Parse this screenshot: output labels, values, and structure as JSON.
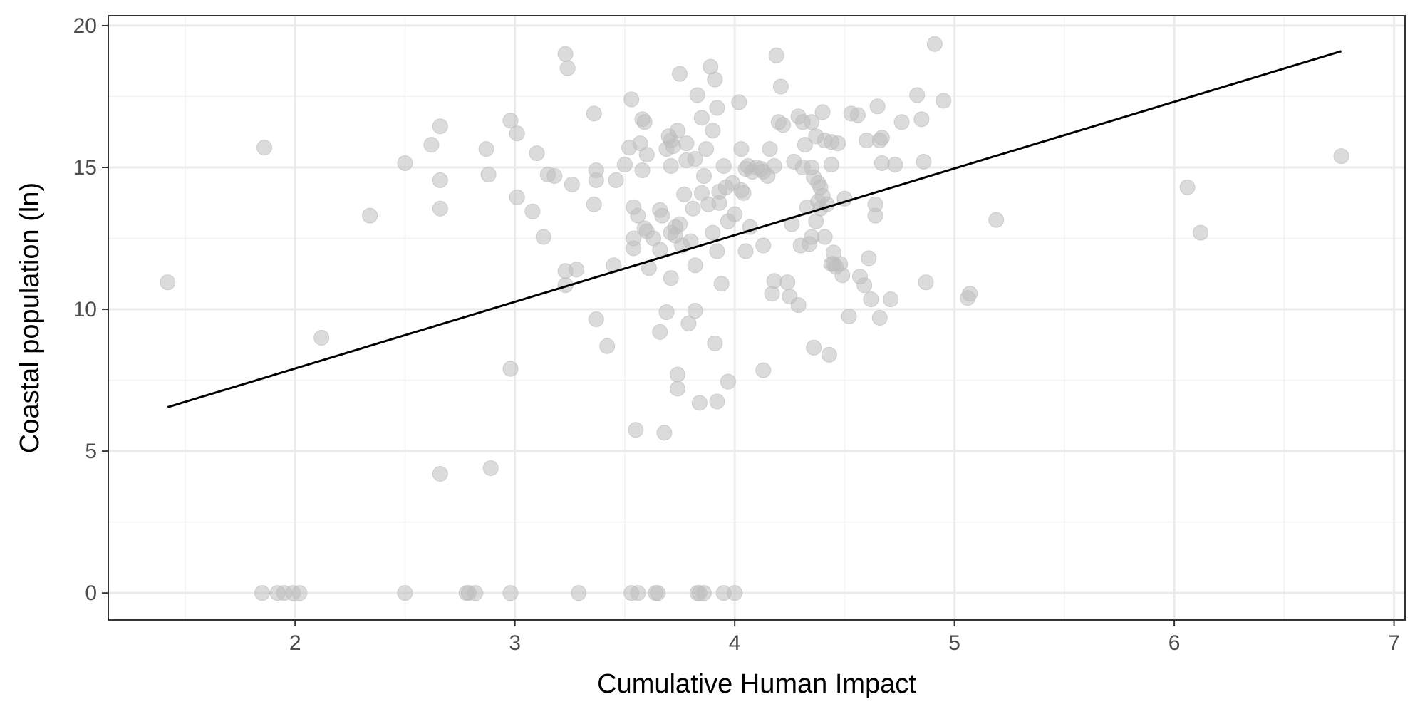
{
  "chart_data": {
    "type": "scatter",
    "xlabel": "Cumulative Human Impact",
    "ylabel": "Coastal population (ln)",
    "xlim": [
      1.15,
      7.05
    ],
    "ylim": [
      -0.95,
      20.35
    ],
    "x_ticks": [
      2,
      3,
      4,
      5,
      6,
      7
    ],
    "y_ticks": [
      0,
      5,
      10,
      15,
      20
    ],
    "x_ticks_minor": [
      1.5,
      2.5,
      3.5,
      4.5,
      5.5,
      6.5
    ],
    "y_ticks_minor": [
      2.5,
      7.5,
      12.5,
      17.5
    ],
    "grid": true,
    "legend": "none",
    "point_color": "#bebebe",
    "line_color": "#000000",
    "trend_line": {
      "x": [
        1.42,
        6.76
      ],
      "y": [
        6.55,
        19.1
      ]
    },
    "points": [
      [
        1.42,
        10.95
      ],
      [
        1.86,
        15.7
      ],
      [
        2.12,
        9.0
      ],
      [
        2.34,
        13.3
      ],
      [
        2.5,
        15.15
      ],
      [
        2.62,
        15.8
      ],
      [
        2.66,
        16.45
      ],
      [
        2.66,
        14.55
      ],
      [
        2.66,
        13.55
      ],
      [
        2.66,
        4.2
      ],
      [
        2.87,
        15.65
      ],
      [
        2.88,
        14.75
      ],
      [
        2.89,
        4.4
      ],
      [
        2.98,
        16.65
      ],
      [
        2.98,
        7.9
      ],
      [
        3.01,
        16.2
      ],
      [
        3.01,
        13.95
      ],
      [
        3.08,
        13.45
      ],
      [
        3.1,
        15.5
      ],
      [
        3.13,
        12.55
      ],
      [
        3.15,
        14.75
      ],
      [
        3.18,
        14.7
      ],
      [
        3.23,
        19.0
      ],
      [
        3.24,
        18.5
      ],
      [
        3.23,
        11.35
      ],
      [
        3.23,
        10.85
      ],
      [
        3.26,
        14.4
      ],
      [
        3.28,
        11.4
      ],
      [
        3.36,
        16.9
      ],
      [
        3.36,
        13.7
      ],
      [
        3.37,
        14.9
      ],
      [
        3.37,
        14.55
      ],
      [
        3.37,
        9.65
      ],
      [
        3.42,
        8.7
      ],
      [
        3.45,
        11.55
      ],
      [
        3.46,
        14.55
      ],
      [
        3.5,
        15.1
      ],
      [
        3.52,
        15.7
      ],
      [
        3.53,
        17.4
      ],
      [
        3.54,
        13.6
      ],
      [
        3.54,
        12.5
      ],
      [
        3.54,
        12.15
      ],
      [
        3.55,
        5.75
      ],
      [
        3.56,
        13.3
      ],
      [
        3.57,
        15.85
      ],
      [
        3.58,
        16.7
      ],
      [
        3.59,
        16.6
      ],
      [
        3.58,
        14.9
      ],
      [
        3.59,
        12.85
      ],
      [
        3.6,
        12.75
      ],
      [
        3.6,
        15.45
      ],
      [
        3.61,
        11.45
      ],
      [
        3.63,
        12.5
      ],
      [
        3.66,
        13.5
      ],
      [
        3.67,
        13.3
      ],
      [
        3.66,
        12.1
      ],
      [
        3.66,
        9.2
      ],
      [
        3.68,
        5.65
      ],
      [
        3.69,
        15.65
      ],
      [
        3.69,
        9.9
      ],
      [
        3.7,
        16.1
      ],
      [
        3.71,
        15.95
      ],
      [
        3.71,
        15.05
      ],
      [
        3.71,
        12.7
      ],
      [
        3.71,
        11.1
      ],
      [
        3.72,
        15.75
      ],
      [
        3.73,
        12.9
      ],
      [
        3.73,
        12.6
      ],
      [
        3.74,
        16.3
      ],
      [
        3.74,
        7.7
      ],
      [
        3.74,
        7.2
      ],
      [
        3.75,
        18.3
      ],
      [
        3.75,
        13.0
      ],
      [
        3.76,
        12.25
      ],
      [
        3.77,
        14.05
      ],
      [
        3.78,
        15.85
      ],
      [
        3.78,
        15.25
      ],
      [
        3.79,
        9.5
      ],
      [
        3.8,
        12.4
      ],
      [
        3.81,
        13.55
      ],
      [
        3.82,
        15.3
      ],
      [
        3.82,
        9.95
      ],
      [
        3.82,
        11.55
      ],
      [
        3.83,
        17.55
      ],
      [
        3.84,
        6.7
      ],
      [
        3.85,
        16.75
      ],
      [
        3.85,
        14.1
      ],
      [
        3.86,
        14.7
      ],
      [
        3.87,
        15.65
      ],
      [
        3.88,
        13.7
      ],
      [
        3.89,
        18.55
      ],
      [
        3.9,
        16.3
      ],
      [
        3.9,
        12.7
      ],
      [
        3.91,
        18.1
      ],
      [
        3.92,
        17.1
      ],
      [
        3.91,
        8.8
      ],
      [
        3.92,
        6.75
      ],
      [
        3.92,
        12.05
      ],
      [
        3.93,
        14.15
      ],
      [
        3.93,
        13.75
      ],
      [
        3.94,
        10.9
      ],
      [
        3.95,
        15.05
      ],
      [
        3.96,
        14.3
      ],
      [
        3.97,
        13.1
      ],
      [
        3.97,
        7.45
      ],
      [
        3.99,
        14.45
      ],
      [
        4.0,
        13.35
      ],
      [
        4.02,
        17.3
      ],
      [
        4.03,
        15.65
      ],
      [
        4.03,
        14.2
      ],
      [
        4.04,
        14.1
      ],
      [
        4.05,
        14.95
      ],
      [
        4.05,
        12.05
      ],
      [
        4.06,
        15.05
      ],
      [
        4.07,
        12.9
      ],
      [
        4.08,
        14.85
      ],
      [
        4.1,
        15.0
      ],
      [
        4.12,
        14.95
      ],
      [
        4.13,
        14.85
      ],
      [
        4.13,
        7.85
      ],
      [
        4.13,
        12.25
      ],
      [
        4.15,
        14.7
      ],
      [
        4.16,
        15.65
      ],
      [
        4.17,
        10.55
      ],
      [
        4.18,
        11.0
      ],
      [
        4.18,
        15.05
      ],
      [
        4.19,
        18.95
      ],
      [
        4.2,
        16.6
      ],
      [
        4.21,
        17.85
      ],
      [
        4.22,
        16.5
      ],
      [
        4.24,
        10.95
      ],
      [
        4.25,
        10.45
      ],
      [
        4.26,
        13.0
      ],
      [
        4.27,
        15.2
      ],
      [
        4.29,
        16.8
      ],
      [
        4.29,
        10.15
      ],
      [
        4.3,
        12.25
      ],
      [
        4.31,
        15.0
      ],
      [
        4.31,
        16.6
      ],
      [
        4.32,
        15.8
      ],
      [
        4.33,
        13.6
      ],
      [
        4.34,
        12.3
      ],
      [
        4.35,
        12.55
      ],
      [
        4.35,
        15.0
      ],
      [
        4.35,
        16.6
      ],
      [
        4.36,
        14.65
      ],
      [
        4.36,
        8.65
      ],
      [
        4.37,
        13.1
      ],
      [
        4.37,
        16.1
      ],
      [
        4.38,
        14.45
      ],
      [
        4.38,
        13.8
      ],
      [
        4.39,
        14.3
      ],
      [
        4.39,
        13.55
      ],
      [
        4.4,
        16.95
      ],
      [
        4.4,
        14.0
      ],
      [
        4.41,
        15.95
      ],
      [
        4.41,
        12.55
      ],
      [
        4.42,
        13.7
      ],
      [
        4.43,
        8.4
      ],
      [
        4.44,
        15.9
      ],
      [
        4.44,
        15.1
      ],
      [
        4.44,
        11.6
      ],
      [
        4.45,
        11.6
      ],
      [
        4.45,
        12.0
      ],
      [
        4.46,
        11.5
      ],
      [
        4.47,
        15.85
      ],
      [
        4.48,
        11.6
      ],
      [
        4.49,
        11.2
      ],
      [
        4.5,
        13.9
      ],
      [
        4.52,
        9.75
      ],
      [
        4.53,
        16.9
      ],
      [
        4.56,
        16.85
      ],
      [
        4.57,
        11.15
      ],
      [
        4.59,
        10.85
      ],
      [
        4.6,
        15.95
      ],
      [
        4.61,
        11.8
      ],
      [
        4.62,
        10.35
      ],
      [
        4.64,
        13.7
      ],
      [
        4.64,
        13.3
      ],
      [
        4.65,
        17.15
      ],
      [
        4.66,
        15.95
      ],
      [
        4.66,
        9.7
      ],
      [
        4.67,
        16.05
      ],
      [
        4.67,
        15.15
      ],
      [
        4.71,
        10.35
      ],
      [
        4.73,
        15.1
      ],
      [
        4.76,
        16.6
      ],
      [
        4.83,
        17.55
      ],
      [
        4.85,
        16.7
      ],
      [
        4.86,
        15.2
      ],
      [
        4.87,
        10.95
      ],
      [
        4.91,
        19.35
      ],
      [
        4.95,
        17.35
      ],
      [
        5.06,
        10.4
      ],
      [
        5.07,
        10.55
      ],
      [
        5.19,
        13.15
      ],
      [
        6.06,
        14.3
      ],
      [
        6.12,
        12.7
      ],
      [
        6.76,
        15.4
      ],
      [
        1.85,
        0
      ],
      [
        1.92,
        0
      ],
      [
        1.95,
        0
      ],
      [
        1.99,
        0
      ],
      [
        2.02,
        0
      ],
      [
        2.5,
        0
      ],
      [
        2.78,
        0
      ],
      [
        2.79,
        0
      ],
      [
        2.82,
        0
      ],
      [
        2.98,
        0
      ],
      [
        3.29,
        0
      ],
      [
        3.53,
        0
      ],
      [
        3.56,
        0
      ],
      [
        3.64,
        0
      ],
      [
        3.65,
        0
      ],
      [
        3.83,
        0
      ],
      [
        3.84,
        0
      ],
      [
        3.86,
        0
      ],
      [
        3.95,
        0
      ],
      [
        4.0,
        0
      ]
    ]
  }
}
